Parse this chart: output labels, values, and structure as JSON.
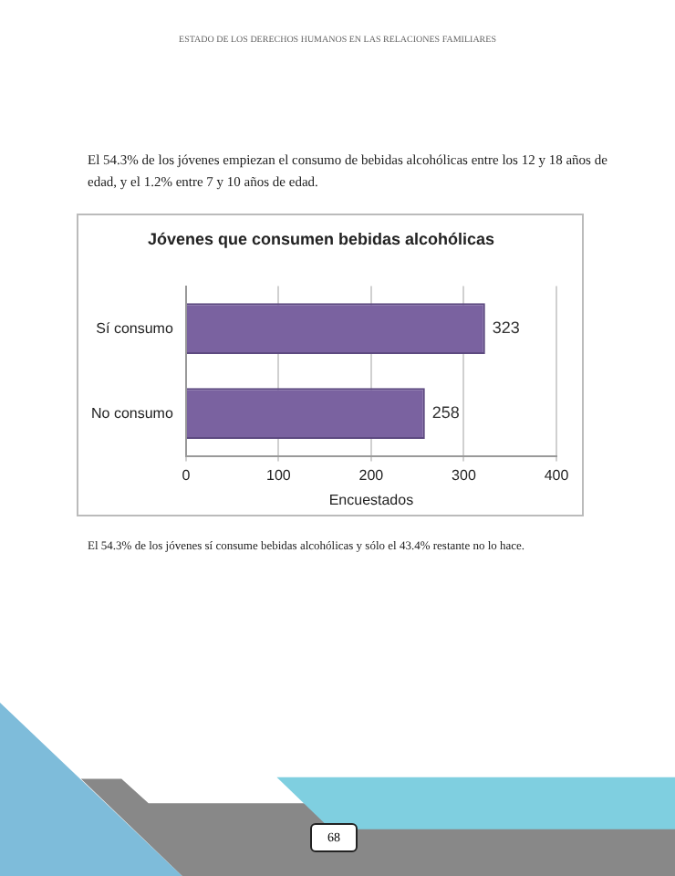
{
  "chart_data": {
    "type": "bar",
    "orientation": "horizontal",
    "title": "Jóvenes que consumen bebidas alcohólicas",
    "xlabel": "Encuestados",
    "categories": [
      "Sí consumo",
      "No consumo"
    ],
    "values": [
      323,
      258
    ],
    "color": "#7a62a0",
    "xlim": [
      0,
      400
    ],
    "xticks": [
      0,
      100,
      200,
      300,
      400
    ],
    "grid": "x",
    "data_labels": true,
    "annotations": [
      "ESTADO DE LOS DERECHOS HUMANOS EN LAS RELACIONES FAMILIARES",
      "El 54.3% de los jóvenes empiezan el consumo de bebidas alcohólicas entre los 12 y 18 años de edad, y el 1.2% entre 7 y 10 años de edad.",
      "El 54.3% de los jóvenes sí consume bebidas alcohólicas y sólo el 43.4% restante no lo hace.",
      "68"
    ]
  }
}
